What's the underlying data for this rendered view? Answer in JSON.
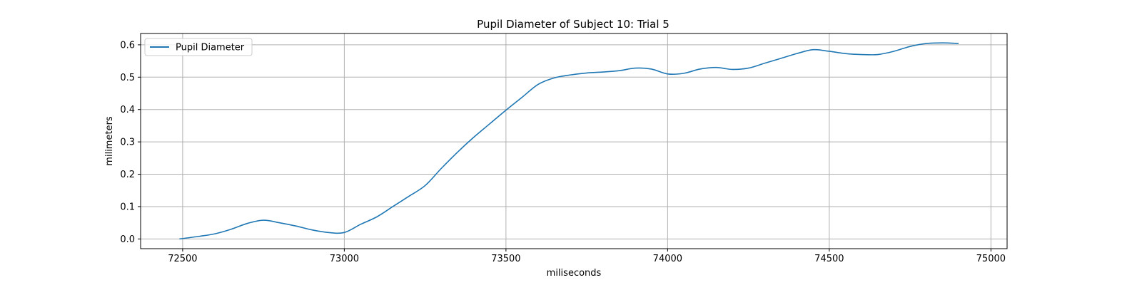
{
  "chart_data": {
    "type": "line",
    "title": "Pupil Diameter of Subject 10: Trial 5",
    "xlabel": "miliseconds",
    "ylabel": "milimeters",
    "xlim": [
      72370,
      75050
    ],
    "ylim": [
      -0.03,
      0.635
    ],
    "xticks": [
      72500,
      73000,
      73500,
      74000,
      74500,
      75000
    ],
    "yticks": [
      0.0,
      0.1,
      0.2,
      0.3,
      0.4,
      0.5,
      0.6
    ],
    "xtick_labels": [
      "72500",
      "73000",
      "73500",
      "74000",
      "74500",
      "75000"
    ],
    "ytick_labels": [
      "0.0",
      "0.1",
      "0.2",
      "0.3",
      "0.4",
      "0.5",
      "0.6"
    ],
    "grid": true,
    "legend": {
      "position": "top-left"
    },
    "series": [
      {
        "name": "Pupil Diameter",
        "color": "#1f77b4",
        "x": [
          72490,
          72550,
          72600,
          72650,
          72700,
          72750,
          72800,
          72850,
          72900,
          72950,
          73000,
          73050,
          73100,
          73150,
          73200,
          73250,
          73300,
          73350,
          73400,
          73450,
          73500,
          73550,
          73600,
          73650,
          73700,
          73750,
          73800,
          73850,
          73900,
          73950,
          74000,
          74050,
          74100,
          74150,
          74200,
          74250,
          74300,
          74350,
          74400,
          74450,
          74500,
          74550,
          74600,
          74650,
          74700,
          74750,
          74800,
          74850,
          74900
        ],
        "y": [
          0.0,
          0.008,
          0.016,
          0.03,
          0.048,
          0.058,
          0.05,
          0.04,
          0.028,
          0.02,
          0.02,
          0.045,
          0.068,
          0.1,
          0.132,
          0.165,
          0.218,
          0.268,
          0.314,
          0.356,
          0.398,
          0.438,
          0.478,
          0.498,
          0.507,
          0.513,
          0.516,
          0.52,
          0.528,
          0.525,
          0.51,
          0.512,
          0.525,
          0.53,
          0.524,
          0.528,
          0.543,
          0.558,
          0.573,
          0.585,
          0.58,
          0.573,
          0.57,
          0.57,
          0.58,
          0.595,
          0.604,
          0.606,
          0.604
        ]
      }
    ]
  }
}
